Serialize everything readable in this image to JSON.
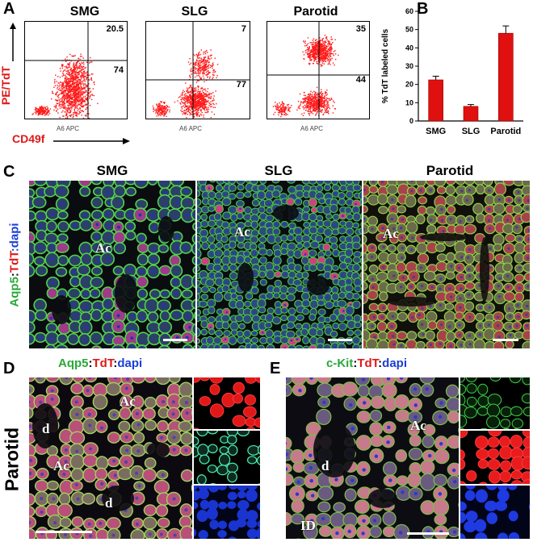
{
  "panel_a": {
    "letter": "A",
    "y_axis_label": "PE/TdT",
    "x_axis_label": "CD49f",
    "plots": [
      {
        "title": "SMG",
        "upper_pct": "20.5",
        "lower_pct": "74",
        "xlabel": "A6 APC"
      },
      {
        "title": "SLG",
        "upper_pct": "7",
        "lower_pct": "77",
        "xlabel": "A6 APC"
      },
      {
        "title": "Parotid",
        "upper_pct": "35",
        "lower_pct": "44",
        "xlabel": "A6 APC"
      }
    ],
    "ticks_y": [
      "10^5",
      "10^4",
      "10^3",
      "10^2",
      "0"
    ],
    "ticks_x": [
      "0",
      "10^2",
      "10^3",
      "10^4",
      "10^5"
    ]
  },
  "chart_data": {
    "type": "bar",
    "panel_letter": "B",
    "categories": [
      "SMG",
      "SLG",
      "Parotid"
    ],
    "values": [
      22.5,
      8,
      48
    ],
    "errors": [
      2,
      1,
      4
    ],
    "ylabel": "% TdT labeled cells",
    "ylim": [
      0,
      60
    ],
    "yticks": [
      0,
      10,
      20,
      30,
      40,
      50,
      60
    ],
    "bar_color": "#e01010"
  },
  "panel_c": {
    "letter": "C",
    "columns": [
      "SMG",
      "SLG",
      "Parotid"
    ],
    "stain_parts": [
      "Aqp5",
      ":",
      "TdT",
      ":dapi"
    ],
    "labels": [
      "Ac",
      "Ac",
      "Ac"
    ]
  },
  "panel_d": {
    "letter": "D",
    "side_label": "Parotid",
    "stain_parts": [
      "Aqp5",
      ":",
      "TdT",
      ":",
      "dapi"
    ],
    "labels": {
      "ac1": "Ac",
      "ac2": "Ac",
      "d1": "d",
      "d2": "d"
    }
  },
  "panel_e": {
    "letter": "E",
    "stain_parts": [
      "c-Kit",
      ":",
      "TdT",
      ":",
      "dapi"
    ],
    "labels": {
      "ac": "Ac",
      "d": "d",
      "id": "ID"
    }
  },
  "colors": {
    "green": "#2aa83a",
    "red": "#e01818",
    "blue": "#1a3fd6"
  }
}
